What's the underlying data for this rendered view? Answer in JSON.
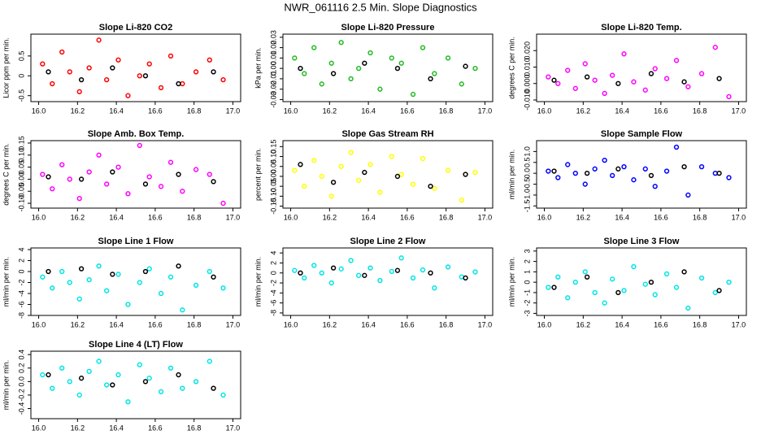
{
  "title": "NWR_061116  2.5 Min. Slope Diagnostics",
  "chart_data": [
    {
      "type": "scatter",
      "title": "Slope Li-820 CO2",
      "ylabel": "Licor ppm per min.",
      "xlim": [
        15.96,
        17.04
      ],
      "ylim": [
        -0.65,
        1.05
      ],
      "xticks": [
        {
          "value": 16,
          "label": "16.0"
        },
        16.2,
        16.4,
        16.6,
        16.8,
        {
          "value": 17,
          "label": "17.0"
        }
      ],
      "yticks": [
        -0.5,
        0,
        0.5
      ],
      "series": [
        {
          "color": "#ff0000",
          "x": [
            16.02,
            16.07,
            16.12,
            16.16,
            16.21,
            16.26,
            16.31,
            16.35,
            16.41,
            16.46,
            16.52,
            16.57,
            16.63,
            16.68,
            16.74,
            16.81,
            16.88,
            16.95
          ],
          "values": [
            0.3,
            -0.2,
            0.6,
            0.1,
            -0.4,
            0.2,
            0.9,
            -0.1,
            0.4,
            -0.5,
            0.0,
            0.3,
            -0.3,
            0.5,
            -0.2,
            0.1,
            0.4,
            -0.1
          ]
        },
        {
          "color": "#000000",
          "x": [
            16.05,
            16.22,
            16.38,
            16.55,
            16.72,
            16.9
          ],
          "values": [
            0.1,
            -0.1,
            0.2,
            0.0,
            -0.2,
            0.1
          ]
        }
      ]
    },
    {
      "type": "scatter",
      "title": "Slope Li-820 Pressure",
      "ylabel": "kPa per min.",
      "xlim": [
        15.96,
        17.04
      ],
      "ylim": [
        -0.032,
        0.033
      ],
      "xticks": [
        {
          "value": 16,
          "label": "16.0"
        },
        16.2,
        16.4,
        16.6,
        16.8,
        {
          "value": 17,
          "label": "17.0"
        }
      ],
      "yticks": [
        -0.03,
        -0.02,
        -0.01,
        {
          "value": 0,
          "label": "0.00"
        },
        0.01,
        0.02,
        0.03
      ],
      "series": [
        {
          "color": "#22bb22",
          "x": [
            16.02,
            16.07,
            16.12,
            16.16,
            16.21,
            16.26,
            16.31,
            16.35,
            16.41,
            16.46,
            16.52,
            16.57,
            16.63,
            16.68,
            16.74,
            16.81,
            16.88,
            16.95
          ],
          "values": [
            0.01,
            -0.005,
            0.02,
            -0.015,
            0.005,
            0.025,
            -0.01,
            0.0,
            0.015,
            -0.02,
            0.01,
            0.005,
            -0.025,
            0.02,
            -0.005,
            0.01,
            -0.015,
            0.0
          ]
        },
        {
          "color": "#000000",
          "x": [
            16.05,
            16.22,
            16.38,
            16.55,
            16.72,
            16.9
          ],
          "values": [
            0.0,
            -0.005,
            0.005,
            0.0,
            -0.01,
            0.002
          ]
        }
      ]
    },
    {
      "type": "scatter",
      "title": "Slope Li-820 Temp.",
      "ylabel": "degrees C per min.",
      "xlim": [
        15.96,
        17.04
      ],
      "ylim": [
        -0.011,
        0.03
      ],
      "xticks": [
        {
          "value": 16,
          "label": "16.0"
        },
        16.2,
        16.4,
        16.6,
        16.8,
        {
          "value": 17,
          "label": "17.0"
        }
      ],
      "yticks": [
        {
          "value": -0.01,
          "label": "-0.010"
        },
        {
          "value": 0,
          "label": "0.000"
        },
        {
          "value": 0.01,
          "label": "0.010"
        },
        {
          "value": 0.02,
          "label": "0.020"
        }
      ],
      "series": [
        {
          "color": "#ff00ff",
          "x": [
            16.02,
            16.07,
            16.12,
            16.16,
            16.21,
            16.26,
            16.31,
            16.35,
            16.41,
            16.46,
            16.52,
            16.57,
            16.63,
            16.68,
            16.74,
            16.81,
            16.88,
            16.95
          ],
          "values": [
            0.004,
            0.0,
            0.008,
            -0.003,
            0.012,
            0.002,
            -0.006,
            0.005,
            0.018,
            0.001,
            -0.004,
            0.009,
            0.003,
            0.014,
            -0.002,
            0.006,
            0.022,
            -0.008
          ]
        },
        {
          "color": "#000000",
          "x": [
            16.05,
            16.22,
            16.38,
            16.55,
            16.72,
            16.9
          ],
          "values": [
            0.002,
            0.004,
            0.0,
            0.006,
            0.001,
            0.003
          ]
        }
      ]
    },
    {
      "type": "scatter",
      "title": "Slope Amb. Box Temp.",
      "ylabel": "degrees C per min.",
      "xlim": [
        15.96,
        17.04
      ],
      "ylim": [
        -0.12,
        0.16
      ],
      "xticks": [
        {
          "value": 16,
          "label": "16.0"
        },
        16.2,
        16.4,
        16.6,
        16.8,
        {
          "value": 17,
          "label": "17.0"
        }
      ],
      "yticks": [
        {
          "value": -0.1,
          "label": "-0.10"
        },
        -0.05,
        {
          "value": 0,
          "label": "0.00"
        },
        0.05,
        {
          "value": 0.1,
          "label": "0.10"
        },
        0.15
      ],
      "series": [
        {
          "color": "#ff00ff",
          "x": [
            16.02,
            16.07,
            16.12,
            16.16,
            16.21,
            16.26,
            16.31,
            16.35,
            16.41,
            16.46,
            16.52,
            16.57,
            16.63,
            16.68,
            16.74,
            16.81,
            16.88,
            16.95
          ],
          "values": [
            0.02,
            -0.04,
            0.06,
            0.0,
            -0.08,
            0.03,
            0.1,
            -0.02,
            0.05,
            -0.06,
            0.14,
            0.01,
            -0.03,
            0.07,
            -0.05,
            0.04,
            0.02,
            -0.1
          ]
        },
        {
          "color": "#000000",
          "x": [
            16.05,
            16.22,
            16.38,
            16.55,
            16.72,
            16.9
          ],
          "values": [
            0.01,
            0.0,
            0.03,
            -0.02,
            0.02,
            -0.01
          ]
        }
      ]
    },
    {
      "type": "scatter",
      "title": "Slope Gas Stream RH",
      "ylabel": "percent per min.",
      "xlim": [
        15.96,
        17.04
      ],
      "ylim": [
        -0.16,
        0.18
      ],
      "xticks": [
        {
          "value": 16,
          "label": "16.0"
        },
        16.2,
        16.4,
        16.6,
        16.8,
        {
          "value": 17,
          "label": "17.0"
        }
      ],
      "yticks": [
        -0.15,
        {
          "value": -0.1,
          "label": "-0.10"
        },
        -0.05,
        {
          "value": 0,
          "label": "0.00"
        },
        0.05,
        {
          "value": 0.1,
          "label": "0.10"
        },
        0.15
      ],
      "series": [
        {
          "color": "#ffff00",
          "x": [
            16.02,
            16.07,
            16.12,
            16.16,
            16.21,
            16.26,
            16.31,
            16.35,
            16.41,
            16.46,
            16.52,
            16.57,
            16.63,
            16.68,
            16.74,
            16.81,
            16.88,
            16.95
          ],
          "values": [
            0.03,
            -0.05,
            0.08,
            0.0,
            -0.1,
            0.05,
            0.12,
            -0.02,
            0.06,
            -0.08,
            0.1,
            0.01,
            -0.04,
            0.09,
            -0.06,
            0.03,
            -0.12,
            0.02
          ]
        },
        {
          "color": "#000000",
          "x": [
            16.05,
            16.22,
            16.38,
            16.55,
            16.72,
            16.9
          ],
          "values": [
            0.06,
            -0.03,
            0.02,
            0.0,
            -0.05,
            0.01
          ]
        }
      ]
    },
    {
      "type": "scatter",
      "title": "Slope Sample Flow",
      "ylabel": "ml/min per min.",
      "xlim": [
        15.96,
        17.04
      ],
      "ylim": [
        -1.6,
        1.5
      ],
      "xticks": [
        {
          "value": 16,
          "label": "16.0"
        },
        16.2,
        16.4,
        16.6,
        16.8,
        {
          "value": 17,
          "label": "17.0"
        }
      ],
      "yticks": [
        -1.5,
        {
          "value": -1,
          "label": "-1.0"
        },
        -0.5,
        {
          "value": 0,
          "label": "0.0"
        },
        0.5,
        {
          "value": 1,
          "label": "1.0"
        }
      ],
      "series": [
        {
          "color": "#0000ff",
          "x": [
            16.02,
            16.07,
            16.12,
            16.16,
            16.21,
            16.26,
            16.31,
            16.35,
            16.41,
            16.46,
            16.52,
            16.57,
            16.63,
            16.68,
            16.74,
            16.81,
            16.88,
            16.95
          ],
          "values": [
            0.1,
            -0.2,
            0.4,
            0.0,
            -0.5,
            0.2,
            0.6,
            -0.1,
            0.3,
            -0.3,
            0.2,
            -0.6,
            0.1,
            1.2,
            -1.0,
            0.3,
            0.0,
            -0.2
          ]
        },
        {
          "color": "#000000",
          "x": [
            16.05,
            16.22,
            16.38,
            16.55,
            16.72,
            16.9
          ],
          "values": [
            0.1,
            0.0,
            0.2,
            -0.1,
            0.3,
            0.0
          ]
        }
      ]
    },
    {
      "type": "scatter",
      "title": "Slope Line 1 Flow",
      "ylabel": "ml/min per min.",
      "xlim": [
        15.96,
        17.04
      ],
      "ylim": [
        -8,
        4.3
      ],
      "xticks": [
        {
          "value": 16,
          "label": "16.0"
        },
        16.2,
        16.4,
        16.6,
        16.8,
        {
          "value": 17,
          "label": "17.0"
        }
      ],
      "yticks": [
        -8,
        -6,
        -4,
        -2,
        0,
        2,
        4
      ],
      "series": [
        {
          "color": "#00e5e5",
          "x": [
            16.02,
            16.07,
            16.12,
            16.16,
            16.21,
            16.26,
            16.31,
            16.35,
            16.41,
            16.46,
            16.52,
            16.57,
            16.63,
            16.68,
            16.74,
            16.81,
            16.88,
            16.95
          ],
          "values": [
            -1,
            -3,
            0,
            -2,
            -5,
            -1.5,
            1,
            -3.5,
            -0.5,
            -6,
            -2,
            0.5,
            -4,
            -1,
            -7,
            -2.5,
            0,
            -3
          ]
        },
        {
          "color": "#000000",
          "x": [
            16.05,
            16.22,
            16.38,
            16.55,
            16.72,
            16.9
          ],
          "values": [
            0,
            0.5,
            -0.5,
            0,
            1,
            -1
          ]
        }
      ]
    },
    {
      "type": "scatter",
      "title": "Slope Line 2 Flow",
      "ylabel": "ml/min per min.",
      "xlim": [
        15.96,
        17.04
      ],
      "ylim": [
        -8.5,
        5
      ],
      "xticks": [
        {
          "value": 16,
          "label": "16.0"
        },
        16.2,
        16.4,
        16.6,
        16.8,
        {
          "value": 17,
          "label": "17.0"
        }
      ],
      "yticks": [
        -8,
        -6,
        -4,
        -2,
        0,
        2,
        4
      ],
      "series": [
        {
          "color": "#00e5e5",
          "x": [
            16.02,
            16.07,
            16.12,
            16.16,
            16.21,
            16.26,
            16.31,
            16.35,
            16.41,
            16.46,
            16.52,
            16.57,
            16.63,
            16.68,
            16.74,
            16.81,
            16.88,
            16.95
          ],
          "values": [
            0.5,
            -1,
            1.5,
            0,
            -2,
            0.8,
            2.5,
            -0.5,
            1,
            -1.5,
            0.3,
            3,
            -1,
            0.6,
            -3,
            1.2,
            -0.8,
            0.2
          ]
        },
        {
          "color": "#000000",
          "x": [
            16.05,
            16.22,
            16.38,
            16.55,
            16.72,
            16.9
          ],
          "values": [
            0,
            1,
            -0.5,
            0.5,
            0,
            -1
          ]
        }
      ]
    },
    {
      "type": "scatter",
      "title": "Slope Line 3 Flow",
      "ylabel": "ml/min per min.",
      "xlim": [
        15.96,
        17.04
      ],
      "ylim": [
        -3.2,
        3.3
      ],
      "xticks": [
        {
          "value": 16,
          "label": "16.0"
        },
        16.2,
        16.4,
        16.6,
        16.8,
        {
          "value": 17,
          "label": "17.0"
        }
      ],
      "yticks": [
        -3,
        -2,
        -1,
        0,
        1,
        2,
        3
      ],
      "series": [
        {
          "color": "#00e5e5",
          "x": [
            16.02,
            16.07,
            16.12,
            16.16,
            16.21,
            16.26,
            16.31,
            16.35,
            16.41,
            16.46,
            16.52,
            16.57,
            16.63,
            16.68,
            16.74,
            16.81,
            16.88,
            16.95
          ],
          "values": [
            -0.5,
            0.5,
            -1.5,
            0,
            1,
            -1,
            -2,
            0.3,
            -0.8,
            1.5,
            -0.2,
            -1.2,
            0.8,
            -0.5,
            -2.5,
            0.4,
            -1,
            0
          ]
        },
        {
          "color": "#000000",
          "x": [
            16.05,
            16.22,
            16.38,
            16.55,
            16.72,
            16.9
          ],
          "values": [
            -0.5,
            0.5,
            -1,
            0,
            1,
            -0.8
          ]
        }
      ]
    },
    {
      "type": "scatter",
      "title": "Slope Line 4 (LT) Flow",
      "ylabel": "ml/min per min.",
      "xlim": [
        15.96,
        17.04
      ],
      "ylim": [
        -0.55,
        0.45
      ],
      "xticks": [
        {
          "value": 16,
          "label": "16.0"
        },
        16.2,
        16.4,
        16.6,
        16.8,
        {
          "value": 17,
          "label": "17.0"
        }
      ],
      "yticks": [
        -0.4,
        -0.2,
        {
          "value": 0,
          "label": "0.0"
        },
        0.2,
        0.4
      ],
      "series": [
        {
          "color": "#00e5e5",
          "x": [
            16.02,
            16.07,
            16.12,
            16.16,
            16.21,
            16.26,
            16.31,
            16.35,
            16.41,
            16.46,
            16.52,
            16.57,
            16.63,
            16.68,
            16.74,
            16.81,
            16.88,
            16.95
          ],
          "values": [
            0.1,
            -0.1,
            0.2,
            0.0,
            -0.2,
            0.15,
            0.3,
            -0.05,
            0.1,
            -0.3,
            0.25,
            0.05,
            -0.15,
            0.2,
            -0.1,
            0.0,
            0.3,
            -0.2
          ]
        },
        {
          "color": "#000000",
          "x": [
            16.05,
            16.22,
            16.38,
            16.55,
            16.72,
            16.9
          ],
          "values": [
            0.1,
            0.05,
            -0.05,
            0.0,
            0.1,
            -0.1
          ]
        }
      ]
    }
  ]
}
